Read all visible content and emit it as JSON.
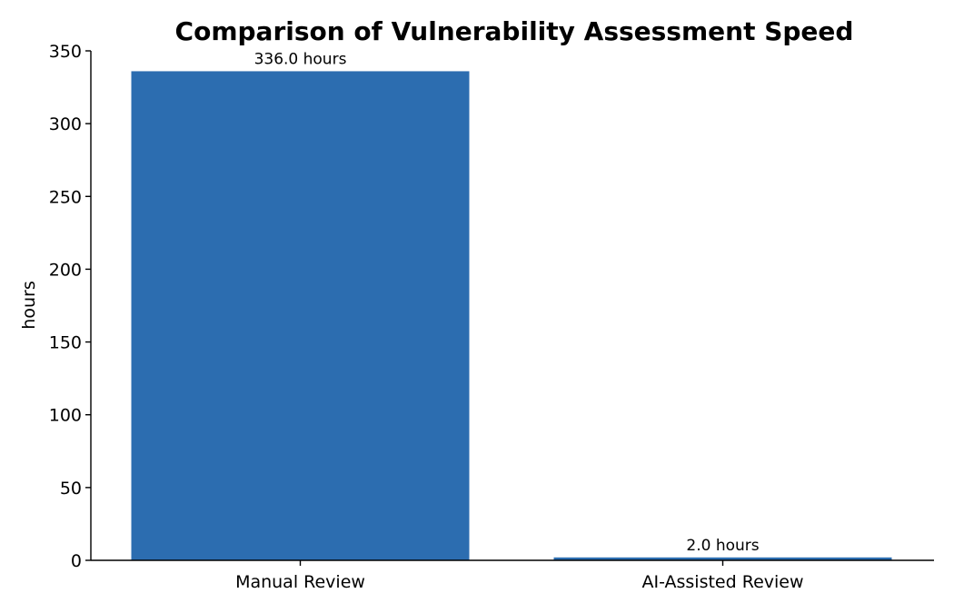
{
  "chart_data": {
    "type": "bar",
    "title": "Comparison of Vulnerability Assessment Speed",
    "xlabel": "",
    "ylabel": "hours",
    "categories": [
      "Manual Review",
      "AI-Assisted Review"
    ],
    "values": [
      336.0,
      2.0
    ],
    "data_labels": [
      "336.0 hours",
      "2.0 hours"
    ],
    "ylim": [
      0,
      350
    ],
    "yticks": [
      0,
      50,
      100,
      150,
      200,
      250,
      300,
      350
    ],
    "ytick_labels": [
      "0",
      "50",
      "100",
      "150",
      "200",
      "250",
      "300",
      "350"
    ],
    "grid": false,
    "legend": "none",
    "bar_color": "#2c6db0"
  }
}
